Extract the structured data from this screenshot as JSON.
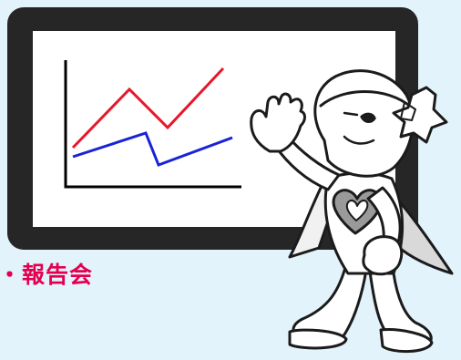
{
  "caption": {
    "text": "・報告会",
    "color": "#e4004f"
  },
  "colors": {
    "background": "#e2f3fb",
    "board_frame": "#262626",
    "board_screen": "#ffffff",
    "line_upper": "#e8162a",
    "line_lower": "#1a22d6"
  },
  "illustration": {
    "subject": "presentation-board-with-line-chart",
    "character": "mascot-pointing-at-board",
    "character_icon": "star-helmet-mascot-icon"
  }
}
